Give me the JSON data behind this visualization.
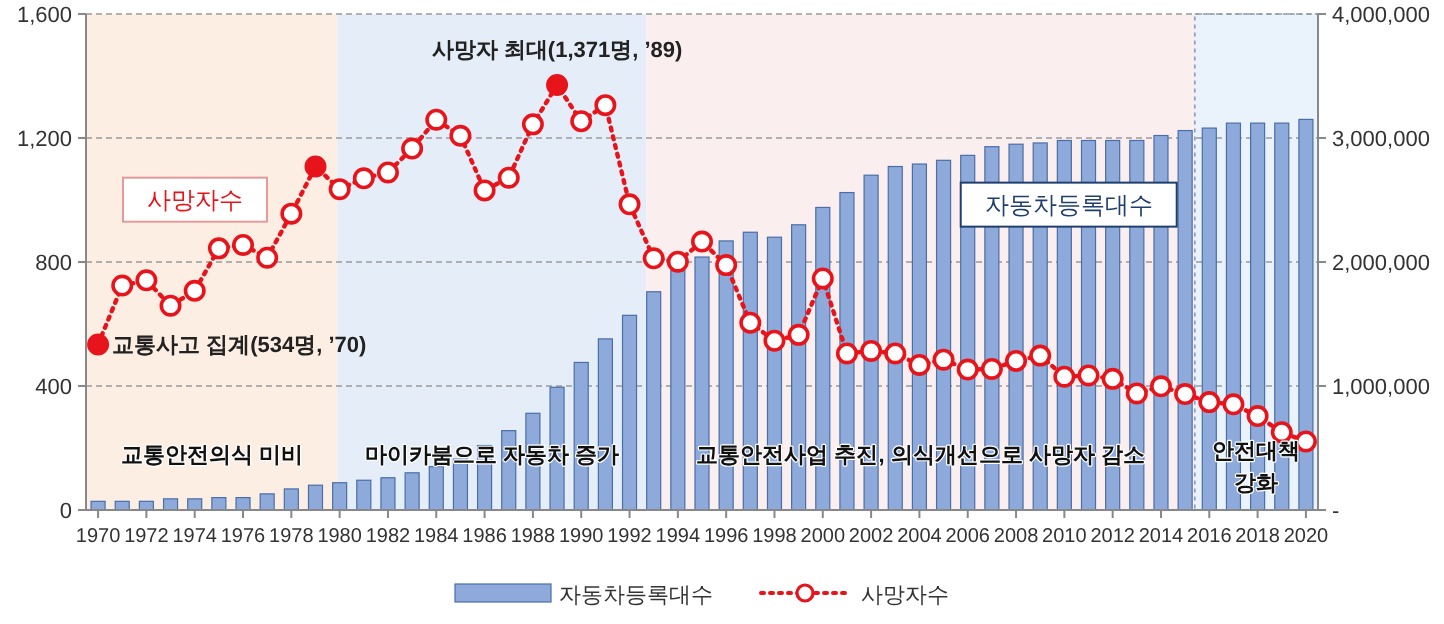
{
  "chart_data": {
    "type": "bar",
    "x": [
      1970,
      1971,
      1972,
      1973,
      1974,
      1975,
      1976,
      1977,
      1978,
      1979,
      1980,
      1981,
      1982,
      1983,
      1984,
      1985,
      1986,
      1987,
      1988,
      1989,
      1990,
      1991,
      1992,
      1993,
      1994,
      1995,
      1996,
      1997,
      1998,
      1999,
      2000,
      2001,
      2002,
      2003,
      2004,
      2005,
      2006,
      2007,
      2008,
      2009,
      2010,
      2011,
      2012,
      2013,
      2014,
      2015,
      2016,
      2017,
      2018,
      2019,
      2020
    ],
    "series": [
      {
        "name": "자동차등록대수",
        "axis": "y2",
        "color": "#8eaadb",
        "values": [
          70000,
          70000,
          70000,
          90000,
          90000,
          100000,
          100000,
          130000,
          170000,
          200000,
          220000,
          240000,
          260000,
          300000,
          350000,
          410000,
          520000,
          640000,
          780000,
          990000,
          1190000,
          1380000,
          1570000,
          1760000,
          1930000,
          2040000,
          2170000,
          2240000,
          2200000,
          2300000,
          2440000,
          2560000,
          2700000,
          2770000,
          2790000,
          2820000,
          2860000,
          2930000,
          2950000,
          2960000,
          2980000,
          2980000,
          2980000,
          2980000,
          3020000,
          3060000,
          3080000,
          3120000,
          3120000,
          3120000,
          3150000
        ]
      },
      {
        "name": "사망자수",
        "type": "line",
        "color": "#e8141b",
        "colors": [
          "#e8141b",
          "#ffffff",
          "#ffffff",
          "#ffffff",
          "#ffffff",
          "#ffffff",
          "#ffffff",
          "#ffffff",
          "#ffffff",
          "#e8141b",
          "#ffffff",
          "#ffffff",
          "#ffffff",
          "#ffffff",
          "#ffffff",
          "#ffffff",
          "#ffffff",
          "#ffffff",
          "#ffffff",
          "#e8141b",
          "#ffffff",
          "#ffffff",
          "#ffffff",
          "#ffffff",
          "#ffffff",
          "#ffffff",
          "#ffffff",
          "#ffffff",
          "#ffffff",
          "#ffffff",
          "#ffffff",
          "#ffffff",
          "#ffffff",
          "#ffffff",
          "#ffffff",
          "#ffffff",
          "#ffffff",
          "#ffffff",
          "#ffffff",
          "#ffffff",
          "#ffffff",
          "#ffffff",
          "#ffffff",
          "#ffffff",
          "#ffffff",
          "#ffffff",
          "#ffffff",
          "#ffffff",
          "#ffffff",
          "#ffffff",
          "#ffffff"
        ],
        "values": [
          534,
          724,
          741,
          659,
          707,
          844,
          855,
          814,
          956,
          1108,
          1035,
          1070,
          1089,
          1166,
          1259,
          1207,
          1031,
          1072,
          1244,
          1371,
          1254,
          1306,
          986,
          812,
          801,
          866,
          790,
          604,
          546,
          565,
          747,
          505,
          513,
          505,
          468,
          485,
          453,
          455,
          481,
          498,
          430,
          434,
          423,
          376,
          399,
          374,
          348,
          341,
          303,
          251,
          221
        ]
      }
    ],
    "xlim": [
      1969.5,
      2020.5
    ],
    "xticks": [
      1970,
      1972,
      1974,
      1976,
      1978,
      1980,
      1982,
      1984,
      1986,
      1988,
      1990,
      1992,
      1994,
      1996,
      1998,
      2000,
      2002,
      2004,
      2006,
      2008,
      2010,
      2012,
      2014,
      2016,
      2018,
      2020
    ],
    "ylim": [
      0,
      1600
    ],
    "yticks": [
      0,
      400,
      800,
      {
        "value": 1200,
        "label": "1,200"
      },
      {
        "value": 1600,
        "label": "1,600"
      }
    ],
    "y2lim": [
      0,
      4000000
    ],
    "y2ticks": [
      {
        "value": 0,
        "label": "-"
      },
      {
        "value": 1000000,
        "label": "1,000,000"
      },
      {
        "value": 2000000,
        "label": "2,000,000"
      },
      {
        "value": 3000000,
        "label": "3,000,000"
      },
      {
        "value": 4000000,
        "label": "4,000,000"
      }
    ],
    "bands": [
      {
        "axis": "x",
        "from": 1969.5,
        "to": 1979.9,
        "label": "교통안전의식  미비",
        "color": "#fdeee3"
      },
      {
        "axis": "x",
        "from": 1979.9,
        "to": 1992.7,
        "label": "마이카붐으로 자동차 증가",
        "color": "#e5eef8"
      },
      {
        "axis": "x",
        "from": 1992.7,
        "to": 2015.4,
        "label": "교통안전사업 추진, 의식개선으로 사망자 감소",
        "color": "#fbeeee"
      },
      {
        "axis": "x",
        "from": 2015.4,
        "to": 2020.5,
        "label": "안전대책 강화",
        "color": "#eaf3fb"
      }
    ],
    "annotations": [
      {
        "text": "교통사고 집계(534명, ’70)",
        "x": 1970,
        "y": 534
      },
      {
        "text": "사망자 최대(1,371명, ’89)",
        "x": 1989,
        "y": 1371
      }
    ],
    "grid": "y",
    "legend": "bottom",
    "marker": "circle",
    "line_style": "dotted"
  }
}
